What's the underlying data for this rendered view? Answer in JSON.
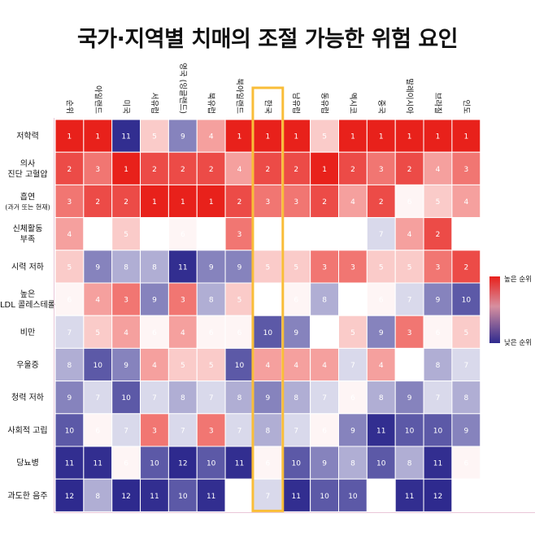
{
  "title": "국가·지역별 치매의 조절 가능한 위험 요인",
  "chart_data": {
    "type": "heatmap",
    "columns": [
      "순위",
      "아일랜드",
      "미국",
      "서유럽",
      "영국 (잉글랜드)",
      "북유럽",
      "북아일랜드",
      "한국",
      "남유럽",
      "동유럽",
      "멕시코",
      "중국",
      "말레이시아",
      "브라질",
      "인도"
    ],
    "highlight_column": "한국",
    "rows": [
      {
        "label": "저학력",
        "sub": "",
        "values": [
          1,
          1,
          11,
          5,
          9,
          4,
          1,
          1,
          1,
          5,
          1,
          1,
          1,
          1,
          1
        ]
      },
      {
        "label": "의사 진단 고혈압",
        "sub": "",
        "values": [
          2,
          3,
          1,
          2,
          2,
          2,
          4,
          2,
          2,
          1,
          2,
          3,
          2,
          4,
          3
        ]
      },
      {
        "label": "흡연",
        "sub": "(과거 또는 현재)",
        "values": [
          3,
          2,
          2,
          1,
          1,
          1,
          2,
          3,
          3,
          2,
          4,
          2,
          6,
          5,
          4
        ]
      },
      {
        "label": "신체활동 부족",
        "sub": "",
        "values": [
          4,
          null,
          5,
          null,
          6,
          null,
          3,
          null,
          null,
          null,
          null,
          7,
          4,
          2,
          null
        ]
      },
      {
        "label": "시력 저하",
        "sub": "",
        "values": [
          5,
          9,
          8,
          8,
          11,
          9,
          9,
          5,
          5,
          3,
          3,
          5,
          5,
          3,
          2
        ]
      },
      {
        "label": "높은 LDL 콜레스테롤",
        "sub": "",
        "values": [
          6,
          4,
          3,
          9,
          3,
          8,
          5,
          null,
          6,
          8,
          null,
          6,
          7,
          9,
          10
        ]
      },
      {
        "label": "비만",
        "sub": "",
        "values": [
          7,
          5,
          4,
          6,
          4,
          6,
          6,
          10,
          9,
          null,
          5,
          9,
          3,
          6,
          5
        ]
      },
      {
        "label": "우울증",
        "sub": "",
        "values": [
          8,
          10,
          9,
          4,
          5,
          5,
          10,
          4,
          4,
          4,
          7,
          4,
          null,
          8,
          7
        ]
      },
      {
        "label": "청력 저하",
        "sub": "",
        "values": [
          9,
          7,
          10,
          7,
          8,
          7,
          8,
          9,
          8,
          7,
          6,
          8,
          9,
          7,
          8
        ]
      },
      {
        "label": "사회적 고립",
        "sub": "",
        "values": [
          10,
          6,
          7,
          3,
          7,
          3,
          7,
          8,
          7,
          6,
          9,
          11,
          10,
          10,
          9
        ]
      },
      {
        "label": "당뇨병",
        "sub": "",
        "values": [
          11,
          11,
          6,
          10,
          12,
          10,
          11,
          6,
          10,
          9,
          8,
          10,
          8,
          11,
          6
        ]
      },
      {
        "label": "과도한 음주",
        "sub": "",
        "values": [
          12,
          8,
          12,
          11,
          10,
          11,
          null,
          7,
          11,
          10,
          10,
          null,
          11,
          12,
          null
        ]
      }
    ],
    "color_scale": {
      "high": "#e8211b",
      "mid": "#ffffff",
      "low": "#2e2a8e",
      "highlight": "#f9bd38"
    },
    "legend": {
      "high_label": "높은 순위",
      "low_label": "낮은 순위",
      "placement": "right"
    }
  }
}
